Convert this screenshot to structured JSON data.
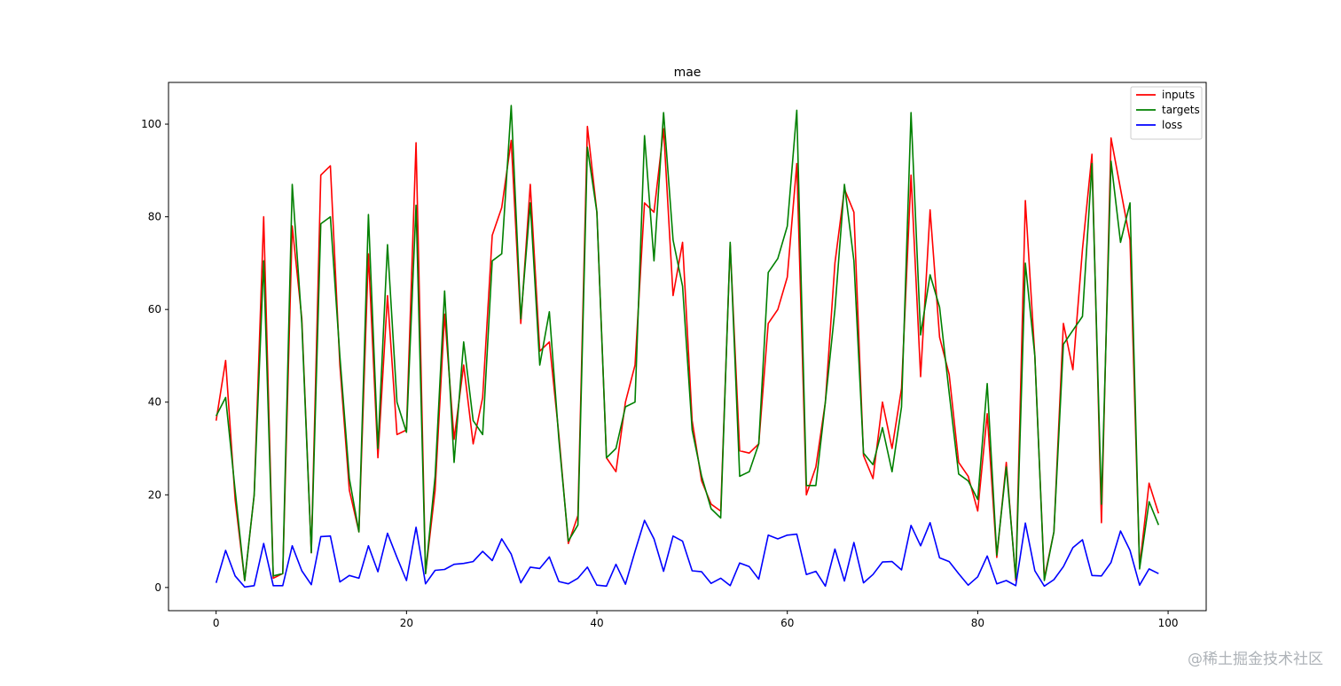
{
  "watermark": "@稀土掘金技术社区",
  "chart_data": {
    "type": "line",
    "title": "mae",
    "xlabel": "",
    "ylabel": "",
    "xlim": [
      -5,
      104
    ],
    "ylim": [
      -5,
      109
    ],
    "xticks": [
      0,
      20,
      40,
      60,
      80,
      100
    ],
    "yticks": [
      0,
      20,
      40,
      60,
      80,
      100
    ],
    "grid": false,
    "legend": "top-right",
    "x": [
      0,
      1,
      2,
      3,
      4,
      5,
      6,
      7,
      8,
      9,
      10,
      11,
      12,
      13,
      14,
      15,
      16,
      17,
      18,
      19,
      20,
      21,
      22,
      23,
      24,
      25,
      26,
      27,
      28,
      29,
      30,
      31,
      32,
      33,
      34,
      35,
      36,
      37,
      38,
      39,
      40,
      41,
      42,
      43,
      44,
      45,
      46,
      47,
      48,
      49,
      50,
      51,
      52,
      53,
      54,
      55,
      56,
      57,
      58,
      59,
      60,
      61,
      62,
      63,
      64,
      65,
      66,
      67,
      68,
      69,
      70,
      71,
      72,
      73,
      74,
      75,
      76,
      77,
      78,
      79,
      80,
      81,
      82,
      83,
      84,
      85,
      86,
      87,
      88,
      89,
      90,
      91,
      92,
      93,
      94,
      95,
      96,
      97,
      98,
      99
    ],
    "series": [
      {
        "name": "inputs",
        "color": "#ff0000",
        "values": [
          36,
          49,
          19,
          1.5,
          20,
          80,
          2,
          3,
          78,
          58,
          7.5,
          89,
          91,
          48,
          21,
          12,
          72,
          28,
          63,
          33,
          34,
          96,
          3,
          21,
          59,
          32,
          48,
          31,
          41,
          76,
          82,
          96.5,
          57,
          87,
          51,
          53,
          33,
          9.5,
          15.5,
          99.5,
          81,
          28,
          25,
          40,
          48,
          83,
          81,
          99,
          63,
          74.5,
          36,
          23,
          18,
          16.5,
          74,
          29.5,
          29,
          31,
          57,
          60,
          67,
          91.5,
          20,
          26,
          40,
          70,
          86,
          81,
          28.5,
          23.5,
          40,
          30,
          43,
          89,
          45.5,
          81.5,
          54,
          46,
          27,
          24,
          16.5,
          37.5,
          6.5,
          27,
          1.5,
          83.5,
          50,
          2,
          12,
          57,
          47,
          73,
          93.5,
          14,
          97,
          86,
          75,
          4.5,
          22.5,
          16
        ]
      },
      {
        "name": "targets",
        "color": "#008000",
        "values": [
          37,
          41,
          21,
          1.5,
          20,
          70.5,
          2.5,
          3,
          87,
          57,
          7.5,
          78.5,
          80,
          50,
          23.5,
          12,
          80.5,
          30,
          74,
          40,
          33.5,
          82.5,
          3,
          24,
          64,
          27,
          53,
          36,
          33,
          70.5,
          72,
          104,
          58,
          83,
          48,
          59.5,
          32,
          10,
          13.5,
          95,
          81,
          28,
          30,
          39,
          40,
          97.5,
          70.5,
          102.5,
          75,
          65,
          34,
          24,
          17,
          15,
          74.5,
          24,
          25,
          31,
          68,
          71,
          78,
          103,
          22,
          22,
          40,
          60,
          87,
          70.5,
          29,
          26.5,
          34.5,
          25,
          39,
          102.5,
          54.5,
          67.5,
          60.5,
          42,
          24.5,
          23,
          19,
          44,
          7,
          26,
          2,
          70,
          50,
          1.5,
          12,
          52.5,
          55.5,
          58.5,
          91.5,
          18,
          92,
          74.5,
          83,
          4,
          18.5,
          13.5
        ]
      },
      {
        "name": "loss",
        "color": "#0000ff",
        "values": [
          1,
          8,
          2.5,
          0.1,
          0.4,
          9.5,
          0.4,
          0.4,
          9,
          3.6,
          0.6,
          11,
          11.1,
          1.2,
          2.6,
          2,
          9,
          3.4,
          11.7,
          6.5,
          1.5,
          13,
          0.8,
          3.7,
          3.9,
          5,
          5.2,
          5.6,
          7.8,
          5.8,
          10.5,
          7.2,
          1,
          4.4,
          4.1,
          6.6,
          1.3,
          0.8,
          2,
          4.4,
          0.5,
          0.3,
          5,
          0.7,
          7.8,
          14.5,
          10.5,
          3.5,
          11.1,
          10,
          3.6,
          3.4,
          0.9,
          2,
          0.4,
          5.3,
          4.5,
          1.8,
          11.3,
          10.5,
          11.3,
          11.5,
          2.8,
          3.5,
          0.3,
          8.3,
          1.4,
          9.7,
          1,
          2.8,
          5.5,
          5.6,
          3.8,
          13.4,
          9,
          14,
          6.4,
          5.6,
          3,
          0.5,
          2.3,
          6.8,
          0.8,
          1.5,
          0.4,
          13.9,
          3.6,
          0.3,
          1.7,
          4.5,
          8.6,
          10.3,
          2.6,
          2.5,
          5.4,
          12.2,
          8,
          0.5,
          4,
          3
        ]
      }
    ]
  }
}
